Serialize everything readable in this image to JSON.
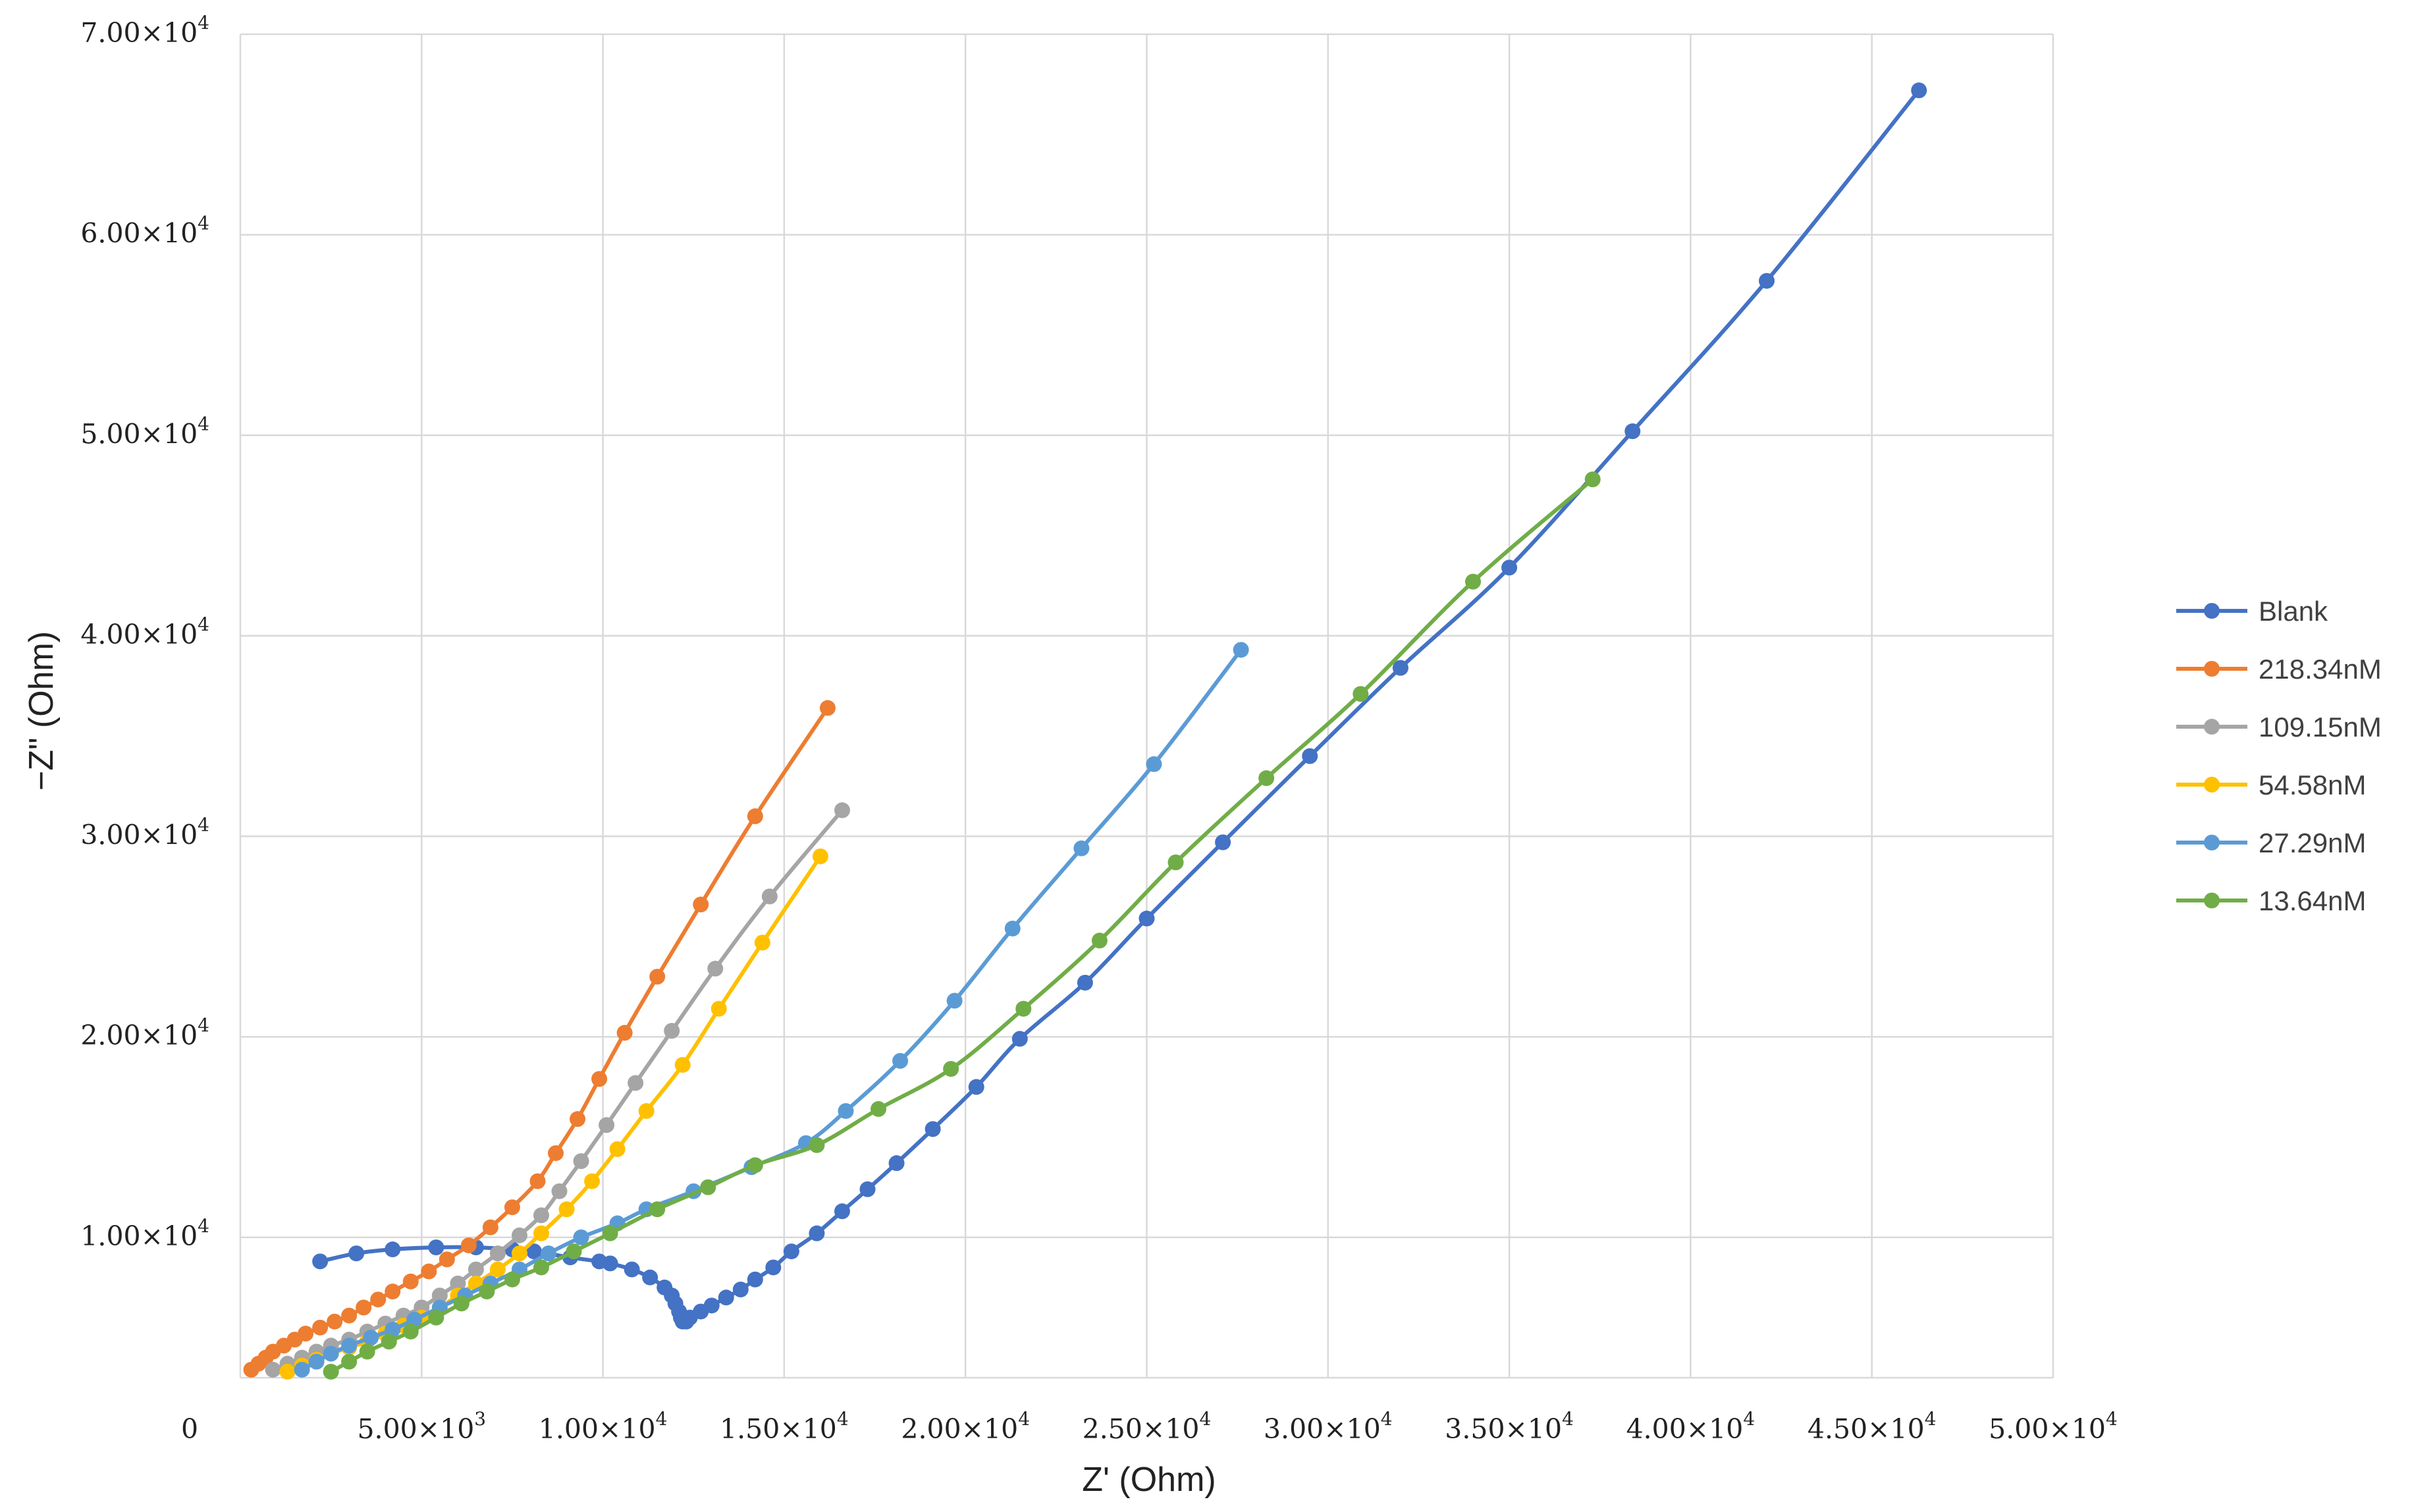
{
  "chart_data": {
    "type": "scatter",
    "xlabel": "Z' (Ohm)",
    "ylabel": "−Z\" (Ohm)",
    "xlim": [
      0,
      50000
    ],
    "ylim": [
      3000,
      70000
    ],
    "grid": true,
    "legend_placement": "right",
    "x_ticks": [
      {
        "value": 0,
        "label": "0"
      },
      {
        "value": 5000,
        "label": "5.00×10^3"
      },
      {
        "value": 10000,
        "label": "1.00×10^4"
      },
      {
        "value": 15000,
        "label": "1.50×10^4"
      },
      {
        "value": 20000,
        "label": "2.00×10^4"
      },
      {
        "value": 25000,
        "label": "2.50×10^4"
      },
      {
        "value": 30000,
        "label": "3.00×10^4"
      },
      {
        "value": 35000,
        "label": "3.50×10^4"
      },
      {
        "value": 40000,
        "label": "4.00×10^4"
      },
      {
        "value": 45000,
        "label": "4.50×10^4"
      },
      {
        "value": 50000,
        "label": "5.00×10^4"
      }
    ],
    "y_ticks": [
      {
        "value": 10000,
        "label": "1.00×10^4"
      },
      {
        "value": 20000,
        "label": "2.00×10^4"
      },
      {
        "value": 30000,
        "label": "3.00×10^4"
      },
      {
        "value": 40000,
        "label": "4.00×10^4"
      },
      {
        "value": 50000,
        "label": "5.00×10^4"
      },
      {
        "value": 60000,
        "label": "6.00×10^4"
      },
      {
        "value": 70000,
        "label": "7.00×10^4"
      }
    ],
    "y_gridlines": [
      3000,
      10000,
      20000,
      30000,
      40000,
      50000,
      60000,
      70000
    ],
    "series": [
      {
        "name": "Blank",
        "color": "#4472C4",
        "points": [
          [
            2200,
            8800
          ],
          [
            3200,
            9200
          ],
          [
            4200,
            9400
          ],
          [
            5400,
            9500
          ],
          [
            6500,
            9500
          ],
          [
            7500,
            9400
          ],
          [
            8100,
            9300
          ],
          [
            9100,
            9000
          ],
          [
            9900,
            8800
          ],
          [
            10200,
            8700
          ],
          [
            10800,
            8400
          ],
          [
            11300,
            8000
          ],
          [
            11700,
            7500
          ],
          [
            11900,
            7100
          ],
          [
            12000,
            6700
          ],
          [
            12100,
            6300
          ],
          [
            12150,
            6000
          ],
          [
            12200,
            5800
          ],
          [
            12300,
            5800
          ],
          [
            12400,
            6000
          ],
          [
            12700,
            6300
          ],
          [
            13000,
            6600
          ],
          [
            13400,
            7000
          ],
          [
            13800,
            7400
          ],
          [
            14200,
            7900
          ],
          [
            14700,
            8500
          ],
          [
            15200,
            9300
          ],
          [
            15900,
            10200
          ],
          [
            16600,
            11300
          ],
          [
            17300,
            12400
          ],
          [
            18100,
            13700
          ],
          [
            19100,
            15400
          ],
          [
            20300,
            17500
          ],
          [
            21500,
            19900
          ],
          [
            23300,
            22700
          ],
          [
            25000,
            25900
          ],
          [
            27100,
            29700
          ],
          [
            29500,
            34000
          ],
          [
            32000,
            38400
          ],
          [
            35000,
            43400
          ],
          [
            38400,
            50200
          ],
          [
            42100,
            57700
          ],
          [
            46300,
            67200
          ]
        ]
      },
      {
        "name": "218.34nM",
        "color": "#ED7D31",
        "points": [
          [
            300,
            3400
          ],
          [
            500,
            3700
          ],
          [
            700,
            4000
          ],
          [
            900,
            4300
          ],
          [
            1200,
            4600
          ],
          [
            1500,
            4900
          ],
          [
            1800,
            5200
          ],
          [
            2200,
            5500
          ],
          [
            2600,
            5800
          ],
          [
            3000,
            6100
          ],
          [
            3400,
            6500
          ],
          [
            3800,
            6900
          ],
          [
            4200,
            7300
          ],
          [
            4700,
            7800
          ],
          [
            5200,
            8300
          ],
          [
            5700,
            8900
          ],
          [
            6300,
            9600
          ],
          [
            6900,
            10500
          ],
          [
            7500,
            11500
          ],
          [
            8200,
            12800
          ],
          [
            8700,
            14200
          ],
          [
            9300,
            15900
          ],
          [
            9900,
            17900
          ],
          [
            10600,
            20200
          ],
          [
            11500,
            23000
          ],
          [
            12700,
            26600
          ],
          [
            14200,
            31000
          ],
          [
            16200,
            36400
          ]
        ]
      },
      {
        "name": "109.15nM",
        "color": "#A5A5A5",
        "points": [
          [
            900,
            3400
          ],
          [
            1300,
            3700
          ],
          [
            1700,
            4000
          ],
          [
            2100,
            4300
          ],
          [
            2500,
            4600
          ],
          [
            3000,
            4900
          ],
          [
            3500,
            5300
          ],
          [
            4000,
            5700
          ],
          [
            4500,
            6100
          ],
          [
            5000,
            6500
          ],
          [
            5500,
            7100
          ],
          [
            6000,
            7700
          ],
          [
            6500,
            8400
          ],
          [
            7100,
            9200
          ],
          [
            7700,
            10100
          ],
          [
            8300,
            11100
          ],
          [
            8800,
            12300
          ],
          [
            9400,
            13800
          ],
          [
            10100,
            15600
          ],
          [
            10900,
            17700
          ],
          [
            11900,
            20300
          ],
          [
            13100,
            23400
          ],
          [
            14600,
            27000
          ],
          [
            16600,
            31300
          ]
        ]
      },
      {
        "name": "54.58nM",
        "color": "#FFC000",
        "points": [
          [
            1300,
            3300
          ],
          [
            1700,
            3600
          ],
          [
            2100,
            3900
          ],
          [
            2500,
            4200
          ],
          [
            3000,
            4500
          ],
          [
            3500,
            4800
          ],
          [
            4000,
            5200
          ],
          [
            4500,
            5600
          ],
          [
            5000,
            6000
          ],
          [
            5500,
            6500
          ],
          [
            6000,
            7100
          ],
          [
            6500,
            7700
          ],
          [
            7100,
            8400
          ],
          [
            7700,
            9200
          ],
          [
            8300,
            10200
          ],
          [
            9000,
            11400
          ],
          [
            9700,
            12800
          ],
          [
            10400,
            14400
          ],
          [
            11200,
            16300
          ],
          [
            12200,
            18600
          ],
          [
            13200,
            21400
          ],
          [
            14400,
            24700
          ],
          [
            16000,
            29000
          ]
        ]
      },
      {
        "name": "27.29nM",
        "color": "#5B9BD5",
        "points": [
          [
            1700,
            3400
          ],
          [
            2100,
            3800
          ],
          [
            2500,
            4200
          ],
          [
            3000,
            4600
          ],
          [
            3600,
            5000
          ],
          [
            4200,
            5400
          ],
          [
            4800,
            5900
          ],
          [
            5500,
            6500
          ],
          [
            6200,
            7100
          ],
          [
            6900,
            7700
          ],
          [
            7700,
            8400
          ],
          [
            8500,
            9200
          ],
          [
            9400,
            10000
          ],
          [
            10400,
            10700
          ],
          [
            11200,
            11400
          ],
          [
            12500,
            12300
          ],
          [
            14100,
            13500
          ],
          [
            15600,
            14700
          ],
          [
            16700,
            16300
          ],
          [
            18200,
            18800
          ],
          [
            19700,
            21800
          ],
          [
            21300,
            25400
          ],
          [
            23200,
            29400
          ],
          [
            25200,
            33600
          ],
          [
            27600,
            39300
          ]
        ]
      },
      {
        "name": "13.64nM",
        "color": "#70AD47",
        "points": [
          [
            2500,
            3300
          ],
          [
            3000,
            3800
          ],
          [
            3500,
            4300
          ],
          [
            4100,
            4800
          ],
          [
            4700,
            5300
          ],
          [
            5400,
            6000
          ],
          [
            6100,
            6700
          ],
          [
            6800,
            7300
          ],
          [
            7500,
            7900
          ],
          [
            8300,
            8500
          ],
          [
            9200,
            9300
          ],
          [
            10200,
            10200
          ],
          [
            11500,
            11400
          ],
          [
            12900,
            12500
          ],
          [
            14200,
            13600
          ],
          [
            15900,
            14600
          ],
          [
            17600,
            16400
          ],
          [
            19600,
            18400
          ],
          [
            21600,
            21400
          ],
          [
            23700,
            24800
          ],
          [
            25800,
            28700
          ],
          [
            28300,
            32900
          ],
          [
            30900,
            37100
          ],
          [
            34000,
            42700
          ],
          [
            37300,
            47800
          ]
        ]
      }
    ]
  }
}
